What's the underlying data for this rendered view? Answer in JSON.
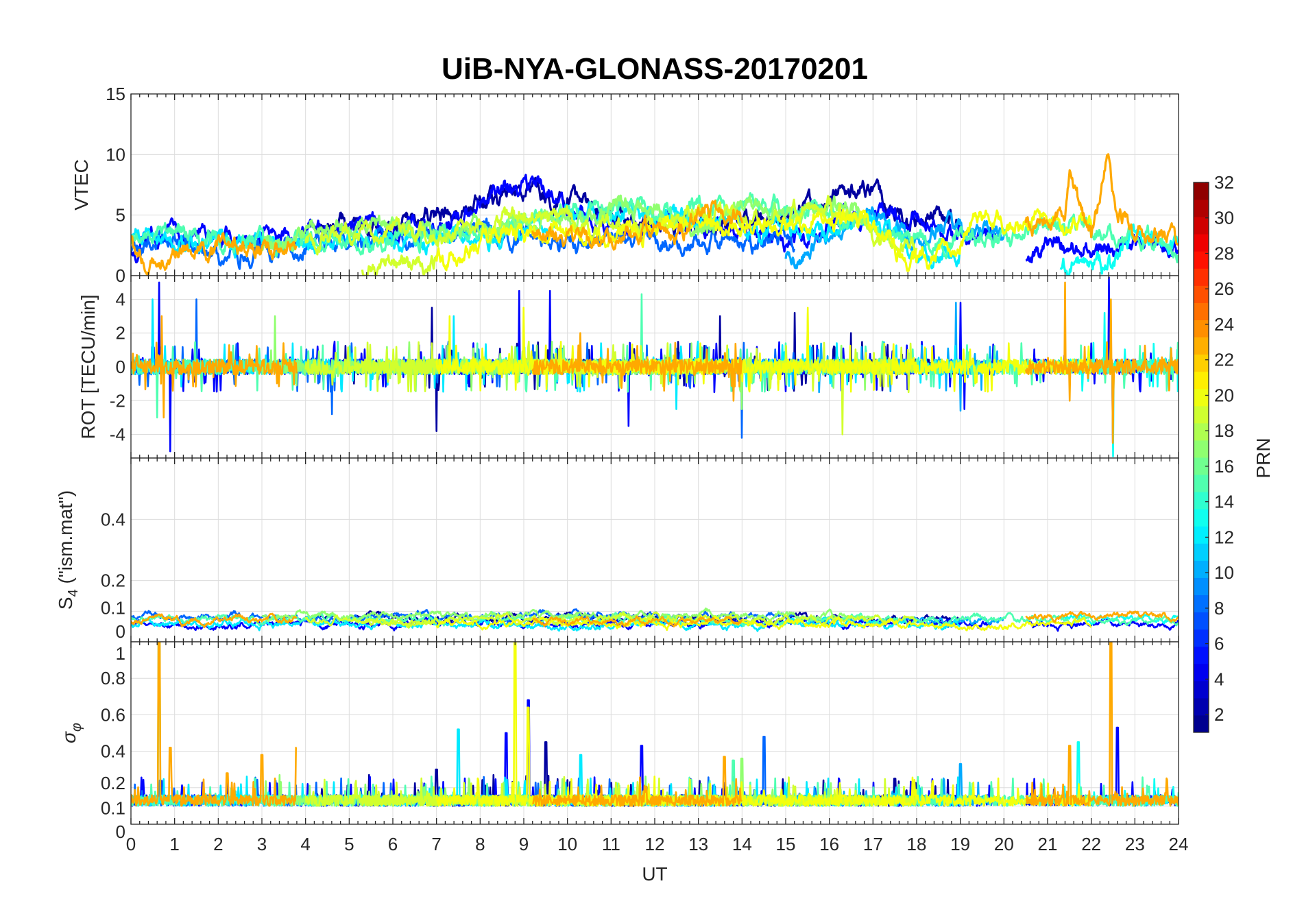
{
  "chart_data": {
    "type": "line",
    "title": "UiB-NYA-GLONASS-20170201",
    "xlabel": "UT",
    "xlim": [
      0,
      24
    ],
    "xticks": [
      "0",
      "1",
      "2",
      "3",
      "4",
      "5",
      "6",
      "7",
      "8",
      "9",
      "10",
      "11",
      "12",
      "13",
      "14",
      "15",
      "16",
      "17",
      "18",
      "19",
      "20",
      "21",
      "22",
      "23",
      "24"
    ],
    "panels": [
      {
        "id": "vtec",
        "ylabel": "VTEC",
        "ylim": [
          0,
          15
        ],
        "yticks": [
          {
            "v": 0,
            "l": "0"
          },
          {
            "v": 5,
            "l": "5"
          },
          {
            "v": 10,
            "l": "10"
          },
          {
            "v": 15,
            "l": "15"
          }
        ]
      },
      {
        "id": "rot",
        "ylabel": "ROT [TECU/min]",
        "ylim": [
          -5.4,
          5.4
        ],
        "yticks": [
          {
            "v": -4,
            "l": "-4"
          },
          {
            "v": -2,
            "l": "-2"
          },
          {
            "v": 0,
            "l": "0"
          },
          {
            "v": 2,
            "l": "2"
          },
          {
            "v": 4,
            "l": "4"
          }
        ]
      },
      {
        "id": "s4",
        "ylabel_main": "S",
        "ylabel_sub": "4",
        "ylabel_rest": " (\"ism.mat\")",
        "ylim": [
          0,
          0.6
        ],
        "yticks": [
          {
            "v": 0,
            "l": "0"
          },
          {
            "v": 0.1,
            "l": "0.1"
          },
          {
            "v": 0.2,
            "l": "0.2"
          },
          {
            "v": 0.4,
            "l": "0.4"
          }
        ]
      },
      {
        "id": "sigma",
        "ylabel_main": "σ",
        "ylabel_sub": "φ",
        "ylim": [
          0,
          1
        ],
        "yticks": [
          {
            "v": 0,
            "l": "0"
          },
          {
            "v": 0.1,
            "l": "0.1"
          },
          {
            "v": 0.2,
            "l": "0.2"
          },
          {
            "v": 0.4,
            "l": "0.4"
          },
          {
            "v": 0.6,
            "l": "0.6"
          },
          {
            "v": 0.8,
            "l": "0.8"
          },
          {
            "v": 1,
            "l": "1"
          }
        ]
      }
    ],
    "colorbar": {
      "label": "PRN",
      "range": [
        1,
        32
      ],
      "ticks": [
        "2",
        "4",
        "6",
        "8",
        "10",
        "12",
        "14",
        "16",
        "18",
        "20",
        "22",
        "24",
        "26",
        "28",
        "30",
        "32"
      ],
      "colormap": "jet"
    },
    "series": [
      {
        "prn": 2,
        "vtec": [
          [
            4,
            3
          ],
          [
            5,
            4.5
          ],
          [
            6,
            4
          ],
          [
            7,
            5
          ],
          [
            8,
            6
          ],
          [
            9,
            7
          ],
          [
            10,
            6
          ],
          [
            11,
            5
          ],
          [
            12,
            4.5
          ],
          [
            13,
            4
          ],
          [
            14,
            4.5
          ],
          [
            15,
            5
          ],
          [
            16,
            6.5
          ],
          [
            16.8,
            7.5
          ],
          [
            17.5,
            5
          ],
          [
            18.5,
            4.5
          ],
          [
            19,
            4.5
          ]
        ],
        "rot_spikes": [
          [
            6.9,
            3.5
          ],
          [
            7,
            -3.8
          ],
          [
            13.5,
            3
          ],
          [
            15.2,
            3.2
          ],
          [
            16.5,
            2
          ]
        ],
        "sigma_spikes": [
          [
            7,
            0.3
          ],
          [
            9.5,
            0.45
          ],
          [
            17.5,
            0.25
          ]
        ]
      },
      {
        "prn": 5,
        "vtec": [
          [
            0,
            2
          ],
          [
            1,
            4
          ],
          [
            2,
            3
          ],
          [
            3,
            3
          ],
          [
            4,
            3.5
          ],
          [
            5,
            4
          ],
          [
            6,
            4
          ],
          [
            7,
            4
          ],
          [
            8,
            6
          ],
          [
            8.5,
            7
          ],
          [
            9.5,
            7.5
          ],
          [
            10,
            6
          ],
          [
            11,
            4
          ],
          [
            12,
            4
          ],
          [
            13,
            4
          ],
          [
            14,
            3.5
          ],
          [
            15,
            3
          ],
          [
            16,
            4
          ],
          [
            17,
            5
          ],
          [
            18,
            4.5
          ],
          [
            19,
            4
          ],
          [
            19.8,
            3
          ]
        ],
        "rot_spikes": [
          [
            0.65,
            5
          ],
          [
            0.9,
            -5
          ],
          [
            8.9,
            4.5
          ],
          [
            9.6,
            4.5
          ],
          [
            11.4,
            -3.5
          ],
          [
            19,
            3.8
          ],
          [
            19.1,
            -2.5
          ]
        ],
        "sigma_spikes": [
          [
            9.1,
            0.68
          ],
          [
            8.6,
            0.5
          ],
          [
            11.7,
            0.43
          ]
        ]
      },
      {
        "prn": 5,
        "vtec": [
          [
            20.5,
            1.5
          ],
          [
            21,
            2.5
          ],
          [
            22,
            2.5
          ],
          [
            23,
            3
          ],
          [
            24,
            2
          ]
        ],
        "rot_spikes": [
          [
            22.4,
            5.3
          ],
          [
            22.5,
            -4.5
          ]
        ],
        "sigma_spikes": [
          [
            22.6,
            0.53
          ]
        ]
      },
      {
        "prn": 8,
        "vtec": [
          [
            0,
            1.8
          ],
          [
            1,
            3
          ],
          [
            2,
            1.5
          ],
          [
            4,
            2.5
          ],
          [
            6,
            3
          ],
          [
            8,
            3.5
          ],
          [
            10,
            3
          ],
          [
            12,
            3
          ],
          [
            14,
            3
          ],
          [
            15.2,
            2.5
          ]
        ],
        "rot_spikes": [
          [
            1.5,
            4
          ],
          [
            14,
            -4.2
          ],
          [
            4.6,
            -2.8
          ]
        ],
        "sigma_spikes": [
          [
            14.5,
            0.48
          ],
          [
            16,
            0.3
          ]
        ]
      },
      {
        "prn": 10,
        "vtec": [
          [
            15,
            1.5
          ],
          [
            16,
            3
          ],
          [
            17,
            5
          ],
          [
            18,
            3
          ],
          [
            19,
            4
          ],
          [
            20,
            3
          ]
        ],
        "rot_spikes": [
          [
            18.9,
            3.8
          ],
          [
            19,
            -2.6
          ]
        ],
        "sigma_spikes": [
          [
            19,
            0.33
          ]
        ]
      },
      {
        "prn": 12,
        "vtec": [
          [
            0,
            3.5
          ],
          [
            2,
            3
          ],
          [
            4,
            3
          ],
          [
            6,
            3
          ],
          [
            8,
            3
          ],
          [
            10,
            5
          ],
          [
            12,
            5
          ],
          [
            14,
            4
          ],
          [
            16,
            4
          ],
          [
            17,
            4.5
          ],
          [
            18,
            2
          ],
          [
            19,
            2
          ]
        ],
        "rot_spikes": [
          [
            0.5,
            4
          ],
          [
            7.4,
            3
          ],
          [
            12.5,
            -2.5
          ]
        ],
        "sigma_spikes": [
          [
            7.5,
            0.52
          ],
          [
            10.3,
            0.38
          ]
        ]
      },
      {
        "prn": 13,
        "vtec": [
          [
            21.3,
            0.5
          ],
          [
            22,
            1.5
          ],
          [
            22.5,
            1
          ],
          [
            23,
            3
          ],
          [
            24,
            2.5
          ]
        ],
        "rot_spikes": [
          [
            22.3,
            3.2
          ],
          [
            22.5,
            -5.3
          ]
        ],
        "sigma_spikes": [
          [
            21.7,
            0.45
          ]
        ]
      },
      {
        "prn": 15,
        "vtec": [
          [
            0,
            3
          ],
          [
            1,
            3.5
          ],
          [
            3,
            2.5
          ],
          [
            5,
            3
          ],
          [
            7,
            3.5
          ],
          [
            9,
            4.5
          ],
          [
            11,
            6
          ],
          [
            12,
            5
          ],
          [
            14,
            6
          ],
          [
            16,
            5
          ],
          [
            17,
            4
          ],
          [
            18,
            2.5
          ],
          [
            19,
            3
          ],
          [
            20,
            3.5
          ],
          [
            21,
            4
          ],
          [
            22,
            4
          ],
          [
            23,
            3.5
          ],
          [
            24,
            2
          ]
        ],
        "rot_spikes": [
          [
            11.7,
            4.3
          ],
          [
            0.6,
            -3
          ]
        ],
        "sigma_spikes": [
          [
            0.65,
            1
          ],
          [
            13.8,
            0.35
          ]
        ]
      },
      {
        "prn": 17,
        "vtec": [
          [
            3,
            2
          ],
          [
            4,
            4
          ],
          [
            6,
            4
          ],
          [
            8,
            3.5
          ],
          [
            10,
            5
          ],
          [
            11.5,
            6
          ],
          [
            13,
            4
          ],
          [
            14,
            6
          ],
          [
            15,
            5
          ],
          [
            16,
            6
          ],
          [
            17,
            4
          ]
        ],
        "rot_spikes": [
          [
            1.6,
            4
          ],
          [
            3.3,
            3
          ],
          [
            14,
            -2.5
          ]
        ],
        "sigma_spikes": [
          [
            14,
            0.36
          ]
        ]
      },
      {
        "prn": 19,
        "vtec": [
          [
            4,
            3
          ],
          [
            6,
            4
          ],
          [
            7,
            3
          ],
          [
            9,
            5
          ],
          [
            11,
            4
          ],
          [
            13,
            5
          ],
          [
            15,
            5
          ],
          [
            16,
            6
          ],
          [
            17,
            3
          ],
          [
            18,
            2
          ]
        ],
        "rot_spikes": [
          [
            16.3,
            -4
          ],
          [
            15.5,
            3.2
          ]
        ],
        "sigma_spikes": []
      },
      {
        "prn": 19,
        "vtec": [
          [
            5.3,
            0.3
          ],
          [
            6,
            0.8
          ],
          [
            7,
            1
          ]
        ],
        "rot_spikes": [],
        "sigma_spikes": []
      },
      {
        "prn": 20,
        "vtec": [
          [
            7,
            1.5
          ],
          [
            8,
            2
          ],
          [
            8.5,
            4
          ],
          [
            9,
            3
          ],
          [
            10,
            4
          ],
          [
            11,
            3.5
          ],
          [
            12,
            4
          ],
          [
            13,
            5
          ],
          [
            14,
            4
          ],
          [
            15,
            4
          ],
          [
            16,
            5
          ],
          [
            17,
            4
          ],
          [
            18,
            1
          ],
          [
            19,
            3
          ],
          [
            19.5,
            5
          ],
          [
            20,
            4
          ],
          [
            21,
            4.5
          ],
          [
            22,
            4
          ]
        ],
        "rot_spikes": [
          [
            9,
            3.5
          ],
          [
            7.3,
            3
          ],
          [
            15.5,
            3.5
          ]
        ],
        "sigma_spikes": [
          [
            8.8,
            1
          ],
          [
            9.1,
            0.64
          ]
        ]
      },
      {
        "prn": 23,
        "vtec": [
          [
            0,
            2.5
          ],
          [
            0.7,
            1
          ],
          [
            1,
            1.5
          ],
          [
            1.5,
            2.5
          ],
          [
            3,
            2.5
          ],
          [
            3.8,
            2.5
          ]
        ],
        "rot_spikes": [
          [
            0.7,
            3
          ],
          [
            0.75,
            -3
          ]
        ],
        "sigma_spikes": [
          [
            0.65,
            1
          ],
          [
            0.9,
            0.42
          ],
          [
            3,
            0.38
          ],
          [
            3.8,
            0.42
          ],
          [
            2.2,
            0.28
          ]
        ]
      },
      {
        "prn": 23,
        "vtec": [
          [
            9.2,
            3.5
          ],
          [
            10,
            3
          ],
          [
            11,
            3.5
          ],
          [
            12,
            4
          ],
          [
            12.5,
            3.5
          ],
          [
            13,
            5
          ],
          [
            14,
            4.5
          ]
        ],
        "rot_spikes": [
          [
            10.3,
            2
          ],
          [
            13.8,
            -2
          ]
        ],
        "sigma_spikes": [
          [
            13.6,
            0.37
          ]
        ]
      },
      {
        "prn": 23,
        "vtec": [
          [
            20.5,
            4
          ],
          [
            21.4,
            5
          ],
          [
            21.5,
            8
          ],
          [
            22,
            3
          ],
          [
            22.4,
            10
          ],
          [
            22.6,
            5
          ],
          [
            23,
            4
          ],
          [
            24,
            2.5
          ]
        ],
        "rot_spikes": [
          [
            21.4,
            5
          ],
          [
            21.5,
            -2
          ],
          [
            22.45,
            4
          ],
          [
            22.5,
            -4.5
          ]
        ],
        "sigma_spikes": [
          [
            21.5,
            0.43
          ],
          [
            22.45,
            1
          ]
        ]
      }
    ]
  }
}
